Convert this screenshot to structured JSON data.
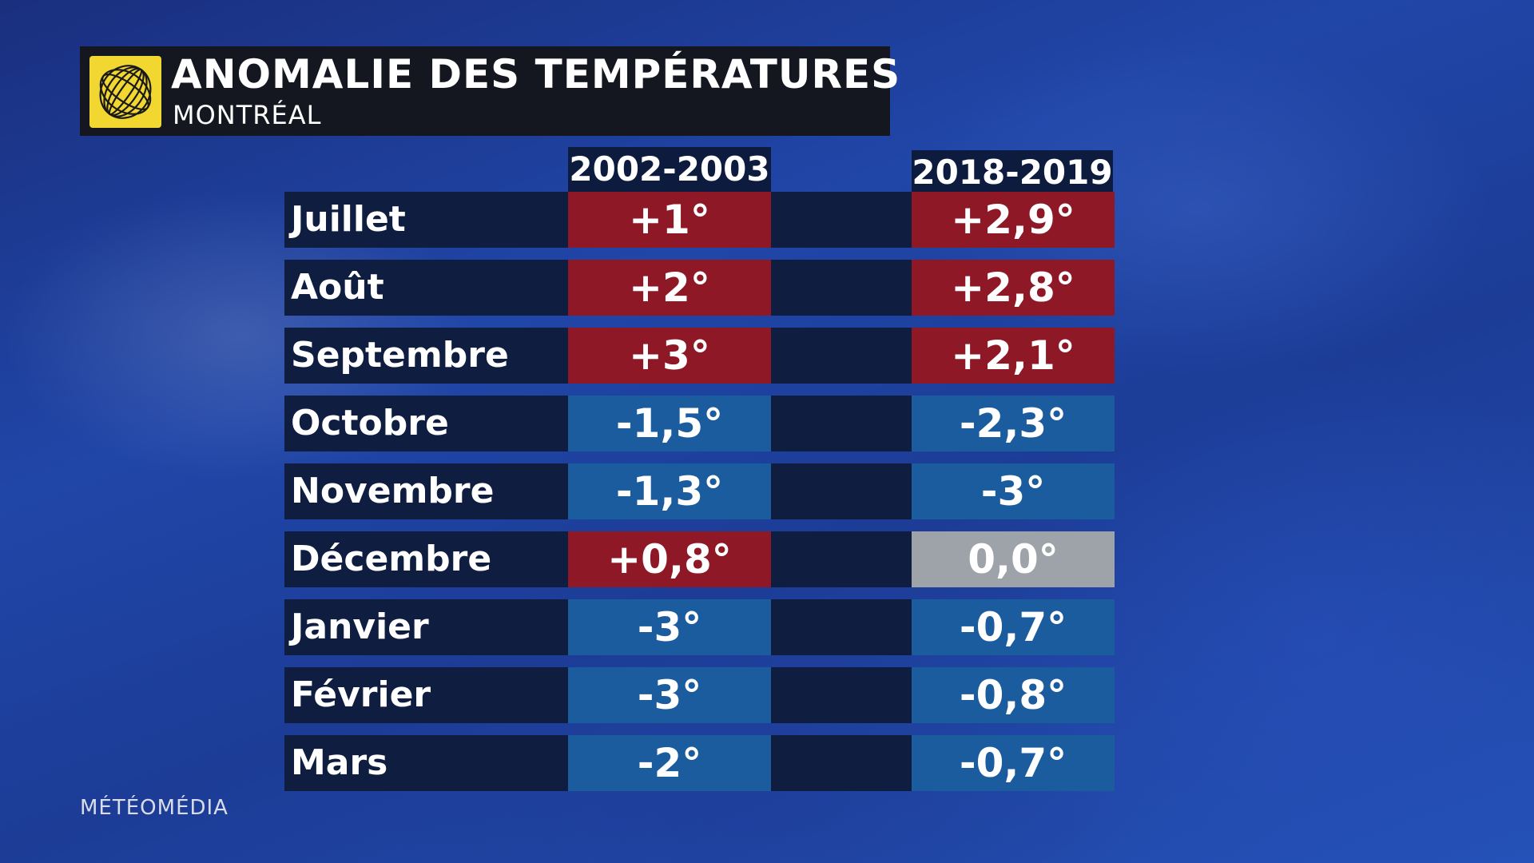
{
  "title": "ANOMALIE DES TEMPÉRATURES",
  "subtitle": "MONTRÉAL",
  "watermark": "MÉTÉOMÉDIA",
  "colors": {
    "warm": "#8e1826",
    "cool": "#1b5c9e",
    "neutral": "#9ea3a9",
    "row_bg": "#0e1d40",
    "logo": "#f2d730"
  },
  "chart_data": {
    "type": "table",
    "title": "ANOMALIE DES TEMPÉRATURES",
    "subtitle": "MONTRÉAL",
    "columns": [
      "2002-2003",
      "2018-2019"
    ],
    "rows": [
      {
        "month": "Juillet",
        "v1": 1.0,
        "v2": 2.9,
        "label1": "+1°",
        "label2": "+2,9°"
      },
      {
        "month": "Août",
        "v1": 2.0,
        "v2": 2.8,
        "label1": "+2°",
        "label2": "+2,8°"
      },
      {
        "month": "Septembre",
        "v1": 3.0,
        "v2": 2.1,
        "label1": "+3°",
        "label2": "+2,1°"
      },
      {
        "month": "Octobre",
        "v1": -1.5,
        "v2": -2.3,
        "label1": "-1,5°",
        "label2": "-2,3°"
      },
      {
        "month": "Novembre",
        "v1": -1.3,
        "v2": -3.0,
        "label1": "-1,3°",
        "label2": "-3°"
      },
      {
        "month": "Décembre",
        "v1": 0.8,
        "v2": 0.0,
        "label1": "+0,8°",
        "label2": "0,0°"
      },
      {
        "month": "Janvier",
        "v1": -3.0,
        "v2": -0.7,
        "label1": "-3°",
        "label2": "-0,7°"
      },
      {
        "month": "Février",
        "v1": -3.0,
        "v2": -0.8,
        "label1": "-3°",
        "label2": "-0,8°"
      },
      {
        "month": "Mars",
        "v1": -2.0,
        "v2": -0.7,
        "label1": "-2°",
        "label2": "-0,7°"
      }
    ]
  }
}
